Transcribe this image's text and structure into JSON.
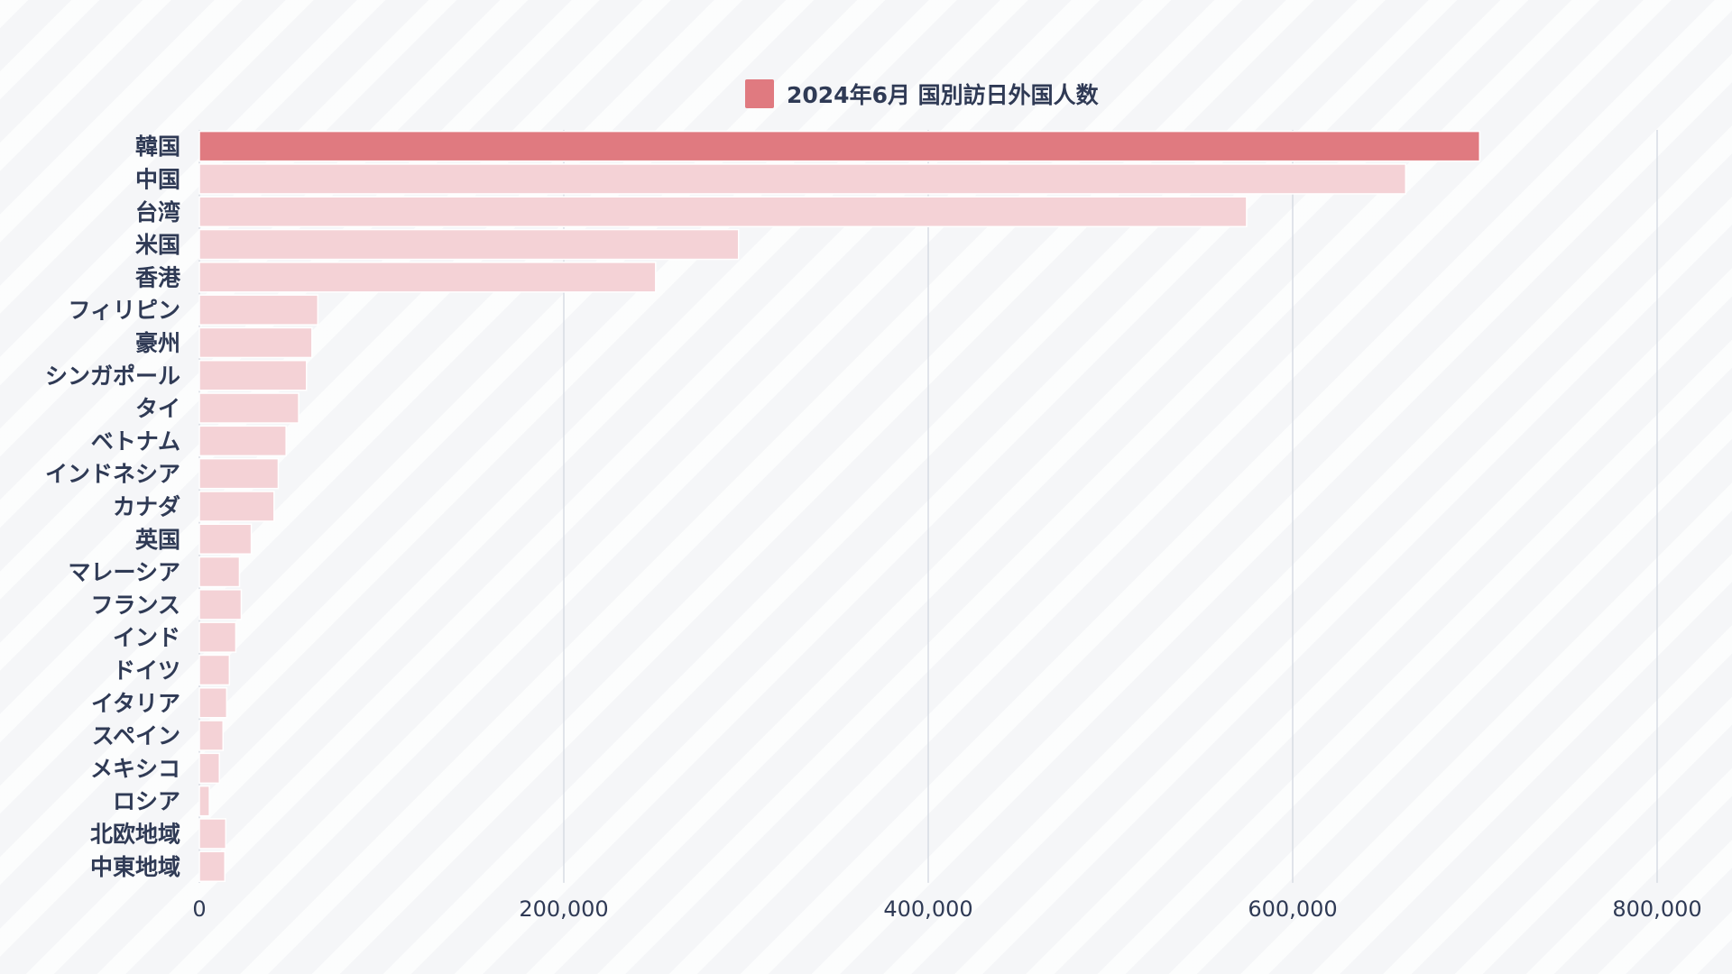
{
  "chart_data": {
    "type": "bar",
    "orientation": "horizontal",
    "categories": [
      "韓国",
      "中国",
      "台湾",
      "米国",
      "香港",
      "フィリピン",
      "豪州",
      "シンガポール",
      "タイ",
      "ベトナム",
      "インドネシア",
      "カナダ",
      "英国",
      "マレーシア",
      "フランス",
      "インド",
      "ドイツ",
      "イタリア",
      "スペイン",
      "メキシコ",
      "ロシア",
      "北欧地域",
      "中東地域"
    ],
    "series": [
      {
        "name": "2024年6月 国別訪日外国人数",
        "values": [
          702600,
          662000,
          574700,
          295900,
          250400,
          65000,
          61800,
          58800,
          54500,
          47600,
          43300,
          41000,
          28500,
          22000,
          23000,
          20000,
          16500,
          15000,
          13000,
          11000,
          5500,
          14500,
          14000
        ]
      }
    ],
    "highlight_index": 0,
    "xlim": [
      0,
      800000
    ],
    "x_ticks": [
      "0",
      "200,000",
      "400,000",
      "600,000",
      "800,000"
    ],
    "x_tick_values": [
      0,
      200000,
      400000,
      600000,
      800000
    ],
    "grid": "vertical",
    "legend_position": "top-center",
    "colors": {
      "highlight": "#e07a80",
      "bar": "#f4d2d6",
      "bar_stroke": "#ffffff",
      "grid": "#cfd4de",
      "text": "#2f3a55"
    }
  }
}
